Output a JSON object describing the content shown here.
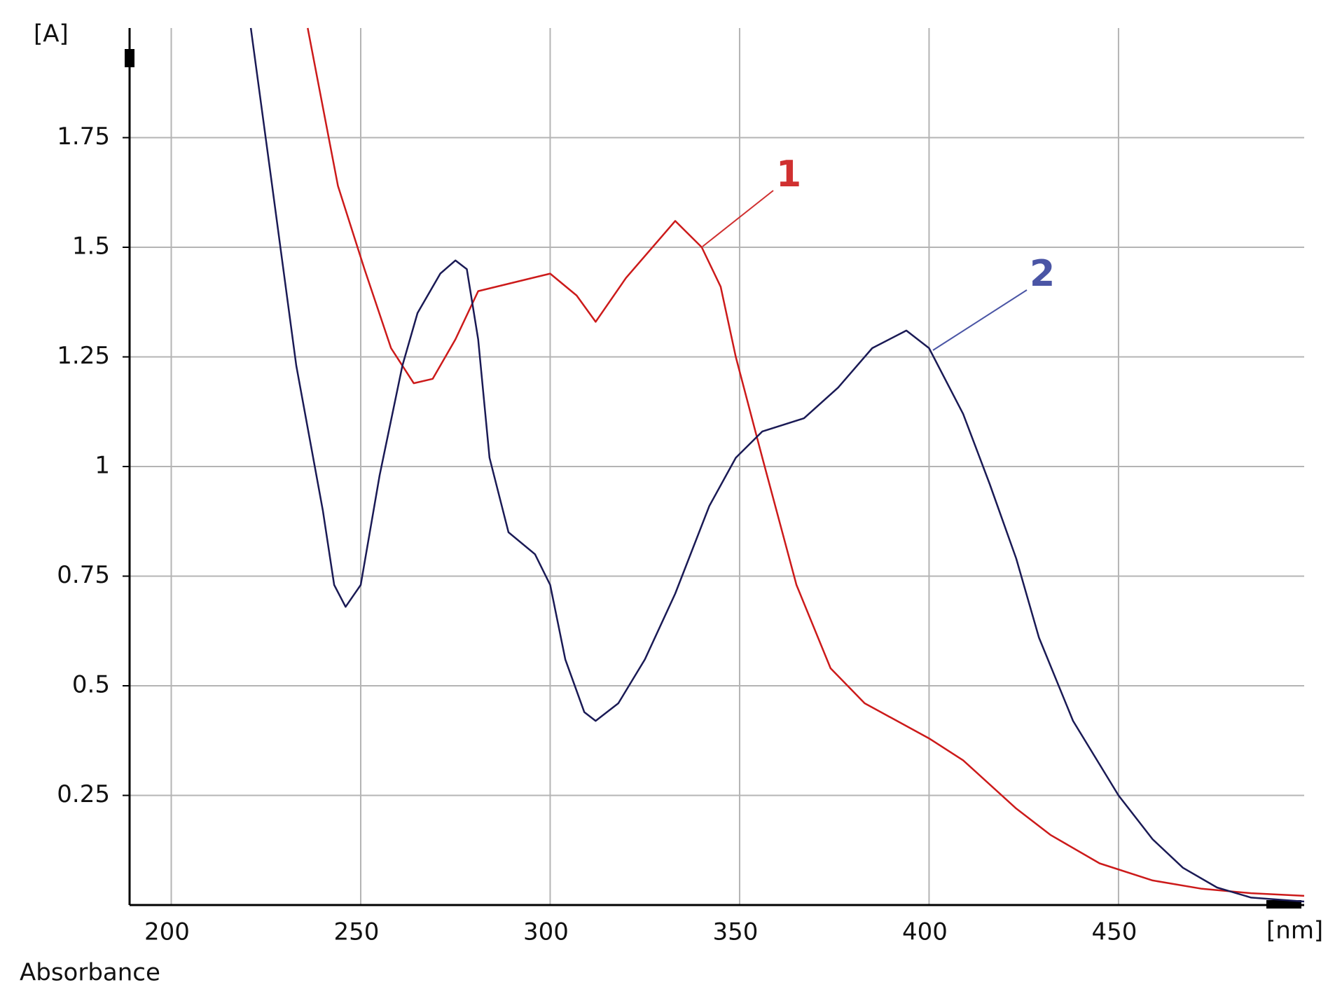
{
  "chart_data": {
    "type": "line",
    "y_axis_label": "[A]",
    "x_axis_label": "[nm]",
    "caption": "Absorbance",
    "xlim": [
      189,
      499
    ],
    "ylim": [
      0,
      2
    ],
    "xticks": [
      200,
      250,
      300,
      350,
      400,
      450
    ],
    "yticks": [
      0.25,
      0.5,
      0.75,
      1,
      1.25,
      1.5,
      1.75
    ],
    "grid": true,
    "series": [
      {
        "name": "1",
        "color": "#cc1a1a",
        "label_color": "#d03030",
        "x": [
          236,
          244,
          251,
          258,
          264,
          269,
          275,
          281,
          300,
          307,
          312,
          320,
          333,
          340,
          345,
          349,
          356,
          365,
          374,
          383,
          400,
          409,
          423,
          432,
          445,
          459,
          472,
          485,
          499
        ],
        "values": [
          2.0,
          1.64,
          1.45,
          1.27,
          1.19,
          1.2,
          1.29,
          1.4,
          1.44,
          1.39,
          1.33,
          1.43,
          1.56,
          1.5,
          1.41,
          1.25,
          1.02,
          0.73,
          0.54,
          0.46,
          0.38,
          0.33,
          0.22,
          0.16,
          0.095,
          0.056,
          0.037,
          0.027,
          0.021
        ]
      },
      {
        "name": "2",
        "color": "#1a1a55",
        "label_color": "#4a55a5",
        "x": [
          221,
          226,
          233,
          240,
          243,
          246,
          250,
          255,
          261,
          265,
          271,
          275,
          278,
          281,
          284,
          289,
          296,
          300,
          304,
          309,
          312,
          318,
          325,
          333,
          342,
          349,
          356,
          367,
          376,
          385,
          394,
          400,
          409,
          416,
          423,
          429,
          438,
          450,
          459,
          467,
          476,
          485,
          499
        ],
        "values": [
          2.0,
          1.68,
          1.23,
          0.9,
          0.73,
          0.68,
          0.73,
          0.98,
          1.23,
          1.35,
          1.44,
          1.47,
          1.45,
          1.29,
          1.02,
          0.85,
          0.8,
          0.73,
          0.56,
          0.44,
          0.42,
          0.46,
          0.56,
          0.71,
          0.91,
          1.02,
          1.08,
          1.11,
          1.18,
          1.27,
          1.31,
          1.27,
          1.12,
          0.96,
          0.79,
          0.61,
          0.42,
          0.25,
          0.15,
          0.085,
          0.04,
          0.017,
          0.008
        ]
      }
    ]
  }
}
